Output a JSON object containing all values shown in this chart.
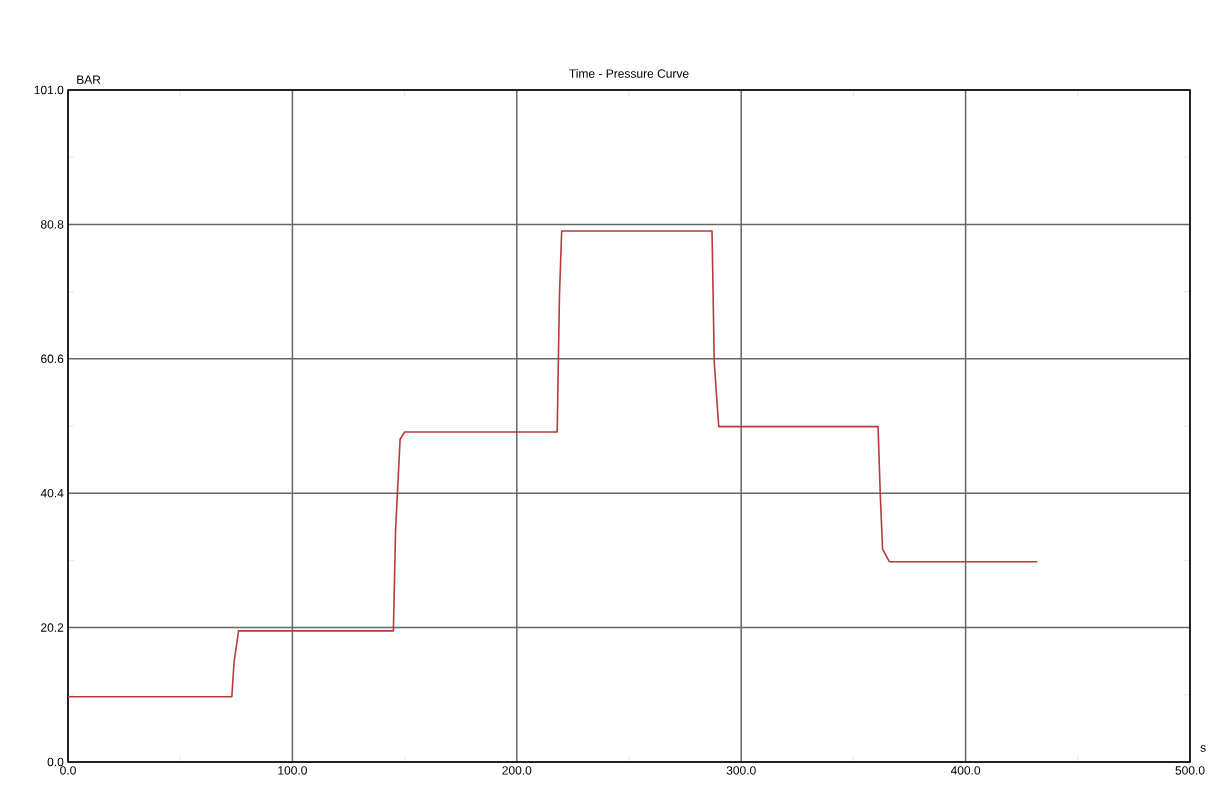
{
  "chart_data": {
    "type": "line",
    "title": "Time - Pressure Curve",
    "xlabel": "s",
    "ylabel": "BAR",
    "xlim": [
      0,
      500
    ],
    "ylim": [
      0,
      101
    ],
    "xticks": [
      {
        "value": 0,
        "label": "0.0"
      },
      {
        "value": 100,
        "label": "100.0"
      },
      {
        "value": 200,
        "label": "200.0"
      },
      {
        "value": 300,
        "label": "300.0"
      },
      {
        "value": 400,
        "label": "400.0"
      },
      {
        "value": 500,
        "label": "500.0"
      }
    ],
    "yticks": [
      {
        "value": 0,
        "label": "0.0"
      },
      {
        "value": 20.2,
        "label": "20.2"
      },
      {
        "value": 40.4,
        "label": "40.4"
      },
      {
        "value": 60.6,
        "label": "60.6"
      },
      {
        "value": 80.8,
        "label": "80.8"
      },
      {
        "value": 101,
        "label": "101.0"
      }
    ],
    "grid": true,
    "marker": "none",
    "line_style": "solid",
    "x": [
      0,
      73,
      74,
      76,
      145,
      146,
      148,
      150,
      218,
      219,
      220,
      287,
      288,
      290,
      361,
      362,
      363,
      366,
      432
    ],
    "series": [
      {
        "color": "#b83a3a",
        "values": [
          9.8,
          9.8,
          15,
          19.7,
          19.7,
          35,
          48.5,
          49.6,
          49.6,
          70,
          79.8,
          79.8,
          60,
          50.4,
          50.4,
          40,
          32,
          30.1,
          30.1
        ]
      }
    ]
  }
}
